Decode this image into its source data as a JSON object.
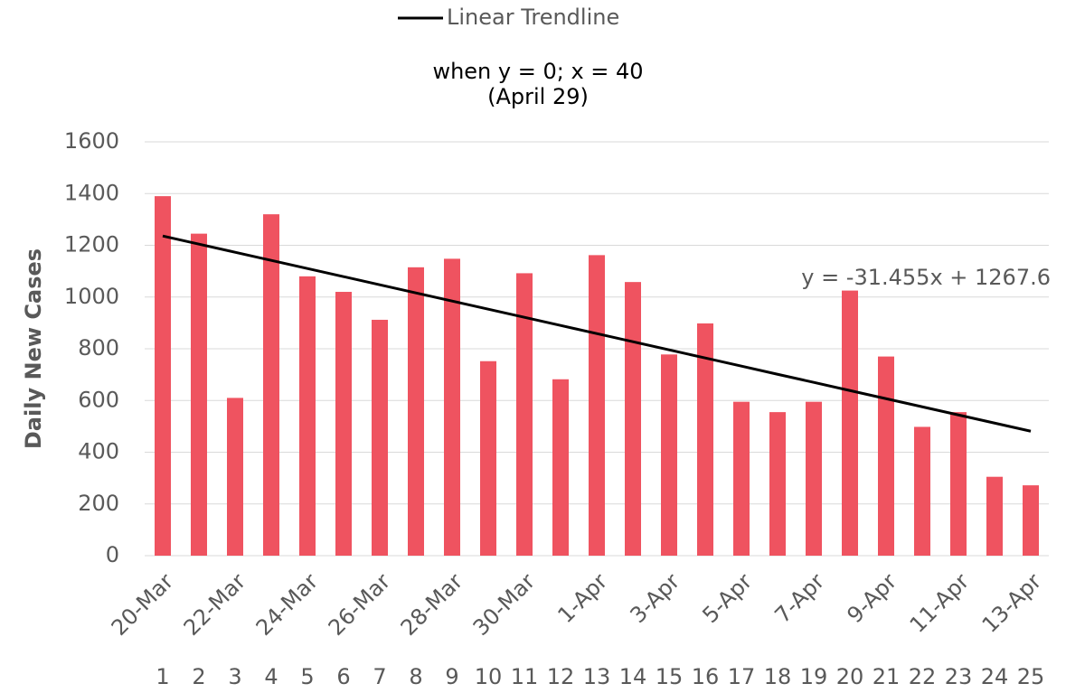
{
  "chart_data": {
    "type": "bar",
    "y_label": "Daily New Cases",
    "annotations": [
      "when y = 0; x = 40",
      "(April 29)"
    ],
    "equation": "y = -31.455x + 1267.6",
    "categories": [
      "20-Mar",
      null,
      "22-Mar",
      null,
      "24-Mar",
      null,
      "26-Mar",
      null,
      "28-Mar",
      null,
      "30-Mar",
      null,
      "1-Apr",
      null,
      "3-Apr",
      null,
      "5-Apr",
      null,
      "7-Apr",
      null,
      "9-Apr",
      null,
      "11-Apr",
      null,
      "13-Apr"
    ],
    "x_index": [
      1,
      2,
      3,
      4,
      5,
      6,
      7,
      8,
      9,
      10,
      11,
      12,
      13,
      14,
      15,
      16,
      17,
      18,
      19,
      20,
      21,
      22,
      23,
      24,
      25
    ],
    "values": [
      1390,
      1245,
      610,
      1320,
      1080,
      1020,
      912,
      1115,
      1148,
      752,
      1092,
      682,
      1162,
      1058,
      778,
      898,
      595,
      555,
      595,
      1025,
      770,
      498,
      555,
      305,
      272
    ],
    "color": "#ef5360",
    "series": [
      {
        "name": "Linear Trendline",
        "color": "#000000",
        "values": [
          1236.1,
          1204.7,
          1173.2,
          1141.8,
          1110.3,
          1078.9,
          1047.4,
          1016.0,
          984.5,
          953.0,
          921.6,
          890.1,
          858.7,
          827.2,
          795.8,
          764.3,
          732.9,
          701.4,
          670.0,
          638.5,
          607.0,
          575.6,
          544.1,
          512.7,
          481.2
        ]
      }
    ],
    "ylim": [
      0,
      1600
    ],
    "yticks": [
      0,
      200,
      400,
      600,
      800,
      1000,
      1200,
      1400,
      1600
    ],
    "grid": true,
    "legend": "top"
  }
}
